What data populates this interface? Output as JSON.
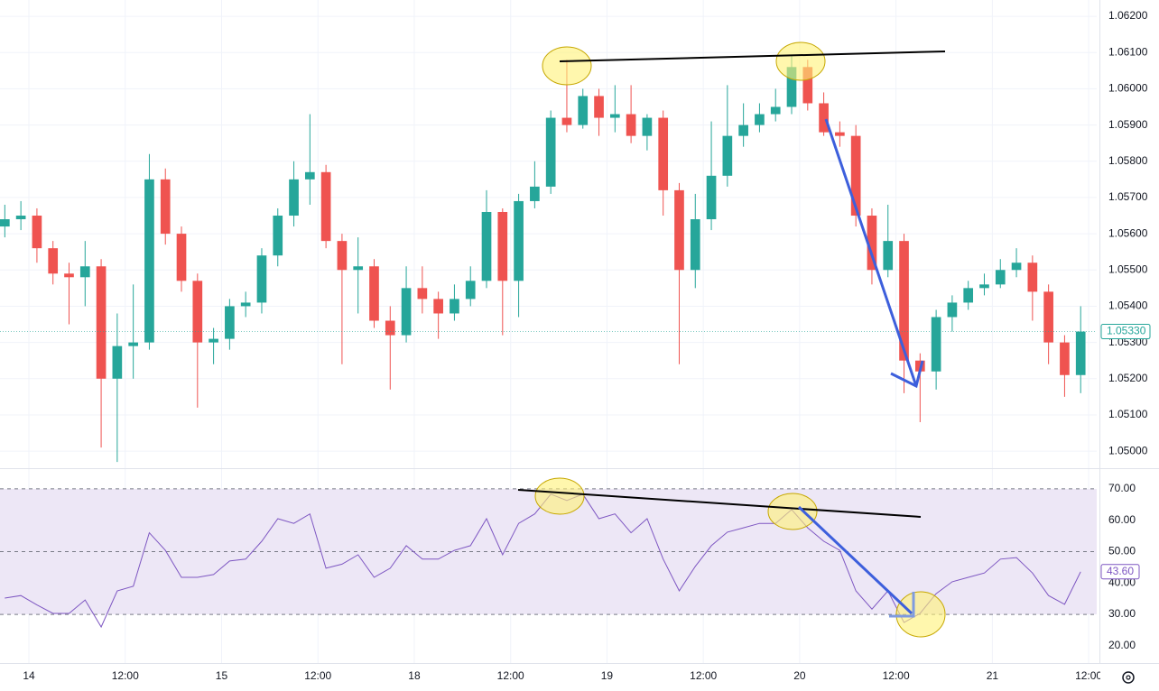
{
  "chart_data": [
    {
      "type": "candlestick",
      "colors": {
        "up": "#26a69a",
        "down": "#ef5350"
      },
      "grid": true,
      "xlim": [
        -3.6,
        133
      ],
      "ylim": [
        1.04953,
        1.06245
      ],
      "xticks": [
        {
          "value": 0,
          "label": "14"
        },
        {
          "value": 12,
          "label": "12:00"
        },
        {
          "value": 24,
          "label": "15"
        },
        {
          "value": 36,
          "label": "12:00"
        },
        {
          "value": 48,
          "label": "18"
        },
        {
          "value": 60,
          "label": "12:00"
        },
        {
          "value": 72,
          "label": "19"
        },
        {
          "value": 84,
          "label": "12:00"
        },
        {
          "value": 96,
          "label": "20"
        },
        {
          "value": 108,
          "label": "12:00"
        },
        {
          "value": 120,
          "label": "21"
        },
        {
          "value": 132,
          "label": "12:00"
        }
      ],
      "yticks": [
        {
          "value": 1.05,
          "label": "1.05000"
        },
        {
          "value": 1.051,
          "label": "1.05100"
        },
        {
          "value": 1.052,
          "label": "1.05200"
        },
        {
          "value": 1.053,
          "label": "1.05300"
        },
        {
          "value": 1.054,
          "label": "1.05400"
        },
        {
          "value": 1.055,
          "label": "1.05500"
        },
        {
          "value": 1.056,
          "label": "1.05600"
        },
        {
          "value": 1.057,
          "label": "1.05700"
        },
        {
          "value": 1.058,
          "label": "1.05800"
        },
        {
          "value": 1.059,
          "label": "1.05900"
        },
        {
          "value": 1.06,
          "label": "1.06000"
        },
        {
          "value": 1.061,
          "label": "1.06100"
        },
        {
          "value": 1.062,
          "label": "1.06200"
        }
      ],
      "last_label": "1.05330",
      "x": [
        -3,
        -1,
        1,
        3,
        5,
        7,
        9,
        11,
        13,
        15,
        17,
        19,
        21,
        23,
        25,
        27,
        29,
        31,
        33,
        35,
        37,
        39,
        41,
        43,
        45,
        47,
        49,
        51,
        53,
        55,
        57,
        59,
        61,
        63,
        65,
        67,
        69,
        71,
        73,
        75,
        77,
        79,
        81,
        83,
        85,
        87,
        89,
        91,
        93,
        95,
        97,
        99,
        101,
        103,
        105,
        107,
        109,
        111,
        113,
        115,
        117,
        119,
        121,
        123,
        125,
        127,
        129,
        131
      ],
      "open": [
        1.0562,
        1.0564,
        1.0565,
        1.0556,
        1.0549,
        1.0548,
        1.0551,
        1.052,
        1.0529,
        1.053,
        1.0575,
        1.056,
        1.0547,
        1.053,
        1.0531,
        1.054,
        1.0541,
        1.0554,
        1.0565,
        1.0575,
        1.0577,
        1.0558,
        1.055,
        1.0551,
        1.0536,
        1.0532,
        1.0545,
        1.0542,
        1.0538,
        1.0542,
        1.0547,
        1.0566,
        1.0547,
        1.0569,
        1.0573,
        1.0592,
        1.059,
        1.0598,
        1.0592,
        1.0593,
        1.0587,
        1.0592,
        1.0572,
        1.055,
        1.0564,
        1.0576,
        1.0587,
        1.059,
        1.0593,
        1.0595,
        1.0606,
        1.0596,
        1.0588,
        1.0587,
        1.0565,
        1.055,
        1.0558,
        1.0525,
        1.0522,
        1.0537,
        1.0541,
        1.0545,
        1.0546,
        1.055,
        1.0552,
        1.0544,
        1.053,
        1.0521
      ],
      "high": [
        1.0568,
        1.0569,
        1.0567,
        1.0558,
        1.0552,
        1.0558,
        1.0553,
        1.0538,
        1.0546,
        1.0582,
        1.0578,
        1.0562,
        1.0549,
        1.0534,
        1.0542,
        1.0544,
        1.0556,
        1.0567,
        1.058,
        1.0593,
        1.0579,
        1.056,
        1.0559,
        1.0553,
        1.054,
        1.0551,
        1.0551,
        1.0544,
        1.0546,
        1.0551,
        1.0572,
        1.0567,
        1.0571,
        1.058,
        1.0594,
        1.0608,
        1.06,
        1.06,
        1.0601,
        1.0601,
        1.0593,
        1.0594,
        1.0574,
        1.0571,
        1.0591,
        1.0601,
        1.0596,
        1.0596,
        1.06,
        1.0609,
        1.0608,
        1.0599,
        1.0591,
        1.059,
        1.0567,
        1.0568,
        1.056,
        1.0527,
        1.0539,
        1.0543,
        1.0547,
        1.0549,
        1.0553,
        1.0556,
        1.0554,
        1.0546,
        1.0532,
        1.054
      ],
      "low": [
        1.0559,
        1.0561,
        1.0552,
        1.0546,
        1.0535,
        1.054,
        1.0501,
        1.0497,
        1.052,
        1.0528,
        1.0557,
        1.0544,
        1.0512,
        1.0524,
        1.0528,
        1.0537,
        1.0538,
        1.0551,
        1.0562,
        1.0568,
        1.0556,
        1.0524,
        1.0538,
        1.0534,
        1.0517,
        1.053,
        1.0538,
        1.0531,
        1.0536,
        1.054,
        1.0545,
        1.0532,
        1.0537,
        1.0567,
        1.0571,
        1.0588,
        1.0589,
        1.0587,
        1.0588,
        1.0585,
        1.0583,
        1.0565,
        1.0524,
        1.0545,
        1.0561,
        1.0573,
        1.0584,
        1.0588,
        1.0591,
        1.0593,
        1.0594,
        1.0587,
        1.0584,
        1.0562,
        1.0546,
        1.0548,
        1.0516,
        1.0508,
        1.0517,
        1.0533,
        1.0539,
        1.0543,
        1.0545,
        1.0548,
        1.0536,
        1.0524,
        1.0515,
        1.0516
      ],
      "close": [
        1.0564,
        1.0565,
        1.0556,
        1.0549,
        1.0548,
        1.0551,
        1.052,
        1.0529,
        1.053,
        1.0575,
        1.056,
        1.0547,
        1.053,
        1.0531,
        1.054,
        1.0541,
        1.0554,
        1.0565,
        1.0575,
        1.0577,
        1.0558,
        1.055,
        1.0551,
        1.0536,
        1.0532,
        1.0545,
        1.0542,
        1.0538,
        1.0542,
        1.0547,
        1.0566,
        1.0547,
        1.0569,
        1.0573,
        1.0592,
        1.059,
        1.0598,
        1.0592,
        1.0593,
        1.0587,
        1.0592,
        1.0572,
        1.055,
        1.0564,
        1.0576,
        1.0587,
        1.059,
        1.0593,
        1.0595,
        1.0606,
        1.0596,
        1.0588,
        1.0587,
        1.0565,
        1.055,
        1.0558,
        1.0525,
        1.0522,
        1.0537,
        1.0541,
        1.0545,
        1.0546,
        1.055,
        1.0552,
        1.0544,
        1.053,
        1.0521,
        1.0533
      ]
    },
    {
      "type": "line",
      "color": "#7e57c2",
      "band_color": "#ede7f6",
      "xlim": [
        -3.6,
        133
      ],
      "ylim": [
        14.5,
        76.3
      ],
      "yticks": [
        {
          "value": 20,
          "label": "20.00"
        },
        {
          "value": 30,
          "label": "30.00"
        },
        {
          "value": 40,
          "label": "40.00"
        },
        {
          "value": 50,
          "label": "50.00"
        },
        {
          "value": 60,
          "label": "60.00"
        },
        {
          "value": 70,
          "label": "70.00"
        }
      ],
      "levels": [
        30,
        50,
        70
      ],
      "last_label": "43.60",
      "x": [
        -3,
        -1,
        1,
        3,
        5,
        7,
        9,
        11,
        13,
        15,
        17,
        19,
        21,
        23,
        25,
        27,
        29,
        31,
        33,
        35,
        37,
        39,
        41,
        43,
        45,
        47,
        49,
        51,
        53,
        55,
        57,
        59,
        61,
        63,
        65,
        67,
        69,
        71,
        73,
        75,
        77,
        79,
        81,
        83,
        85,
        87,
        89,
        91,
        93,
        95,
        97,
        99,
        101,
        103,
        105,
        107,
        109,
        111,
        113,
        115,
        117,
        119,
        121,
        123,
        125,
        127,
        129,
        131
      ],
      "values": [
        35.2,
        36,
        33,
        30.3,
        30.3,
        34.6,
        26,
        37.5,
        39,
        56,
        50.4,
        41.8,
        41.8,
        42.7,
        47,
        47.6,
        53.3,
        60.5,
        59,
        62,
        44.7,
        46,
        49,
        41.8,
        44.7,
        51.9,
        47.6,
        47.6,
        50.4,
        51.9,
        60.5,
        49,
        59,
        62,
        68.3,
        66.3,
        68.3,
        60.5,
        62,
        56,
        60.5,
        47.6,
        37.5,
        45.3,
        51.9,
        56.2,
        57.6,
        59,
        59,
        63.4,
        57.6,
        53.3,
        50.4,
        37.5,
        31.7,
        37.5,
        27.4,
        30.3,
        36.6,
        40.4,
        41.8,
        43.2,
        47.6,
        48.1,
        43.2,
        36,
        33.2,
        43.6
      ]
    }
  ]
}
